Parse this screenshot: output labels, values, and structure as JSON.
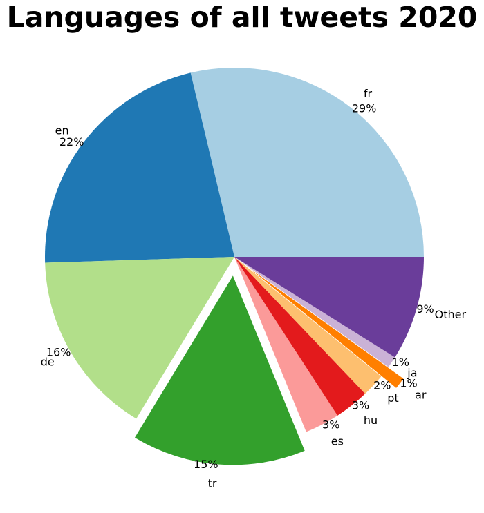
{
  "chart_data": {
    "type": "pie",
    "title": "Languages of all tweets 2020",
    "slices": [
      {
        "label": "fr",
        "value": 29,
        "pct_label": "29%",
        "color": "#a6cee3",
        "exploded": false
      },
      {
        "label": "en",
        "value": 22,
        "pct_label": "22%",
        "color": "#1f78b4",
        "exploded": false
      },
      {
        "label": "de",
        "value": 16,
        "pct_label": "16%",
        "color": "#b2df8a",
        "exploded": false
      },
      {
        "label": "tr",
        "value": 15,
        "pct_label": "15%",
        "color": "#33a02c",
        "exploded": true
      },
      {
        "label": "es",
        "value": 3,
        "pct_label": "3%",
        "color": "#fb9a99",
        "exploded": false
      },
      {
        "label": "hu",
        "value": 3,
        "pct_label": "3%",
        "color": "#e31a1c",
        "exploded": false
      },
      {
        "label": "pt",
        "value": 2,
        "pct_label": "2%",
        "color": "#fdbf6f",
        "exploded": false
      },
      {
        "label": "ar",
        "value": 1,
        "pct_label": "1%",
        "color": "#ff7f00",
        "exploded": true
      },
      {
        "label": "ja",
        "value": 1,
        "pct_label": "1%",
        "color": "#cab2d6",
        "exploded": false
      },
      {
        "label": "Other",
        "value": 9,
        "pct_label": "9%",
        "color": "#6a3d9a",
        "exploded": false
      }
    ]
  }
}
